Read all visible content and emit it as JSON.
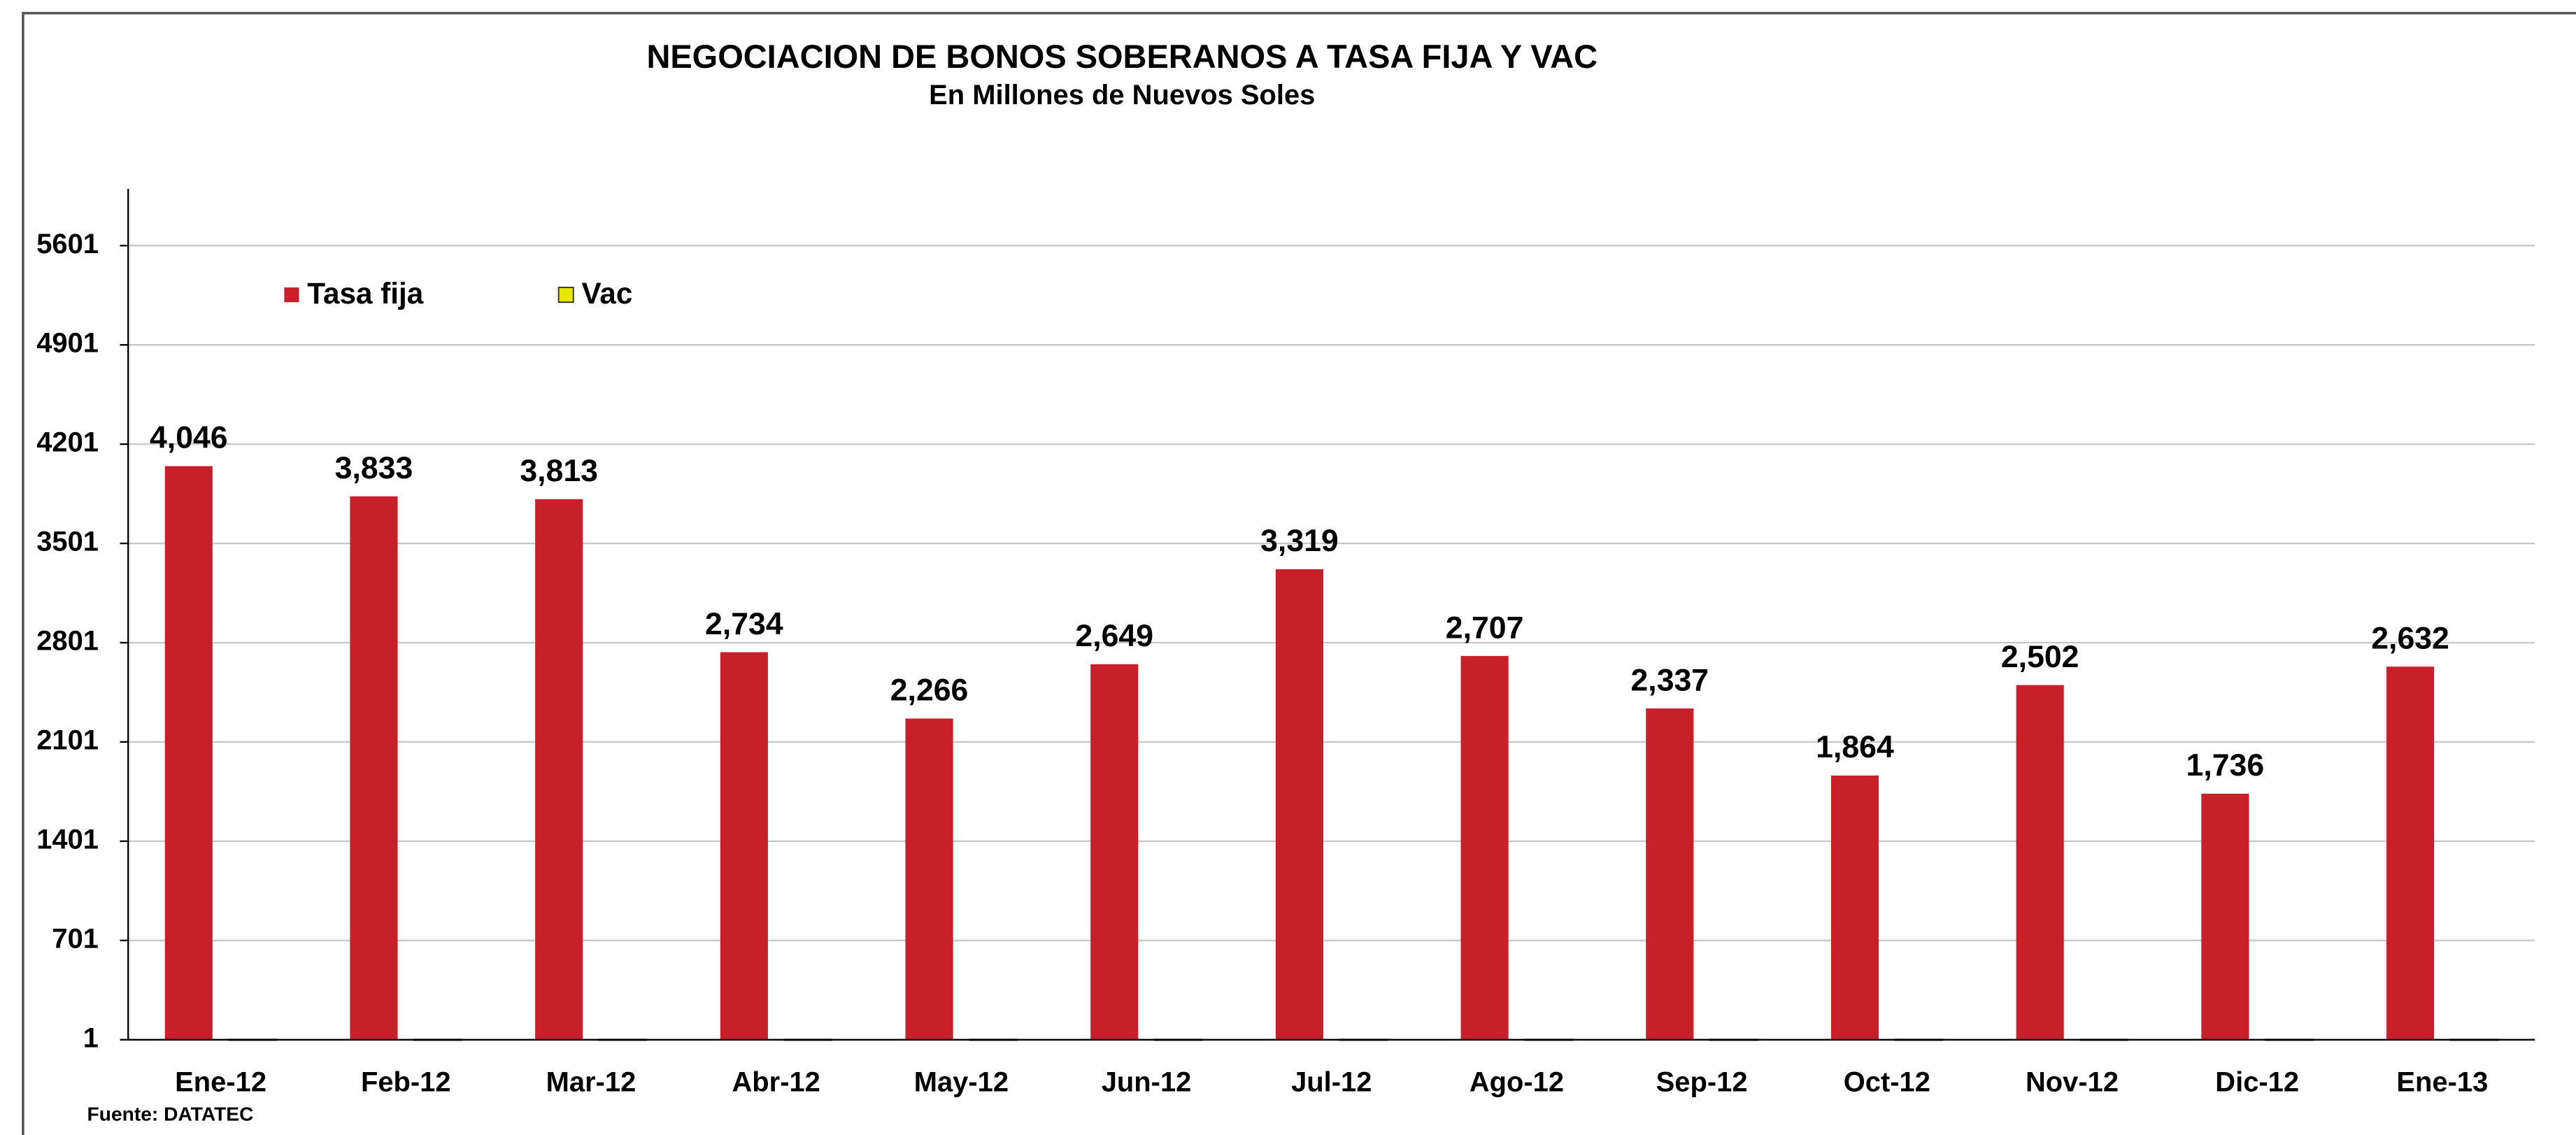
{
  "chart_data": {
    "type": "bar",
    "title": "NEGOCIACION DE BONOS SOBERANOS A TASA FIJA Y VAC",
    "subtitle": "En Millones de Nuevos Soles",
    "source": "Fuente: DATATEC",
    "categories": [
      "Ene-12",
      "Feb-12",
      "Mar-12",
      "Abr-12",
      "May-12",
      "Jun-12",
      "Jul-12",
      "Ago-12",
      "Sep-12",
      "Oct-12",
      "Nov-12",
      "Dic-12",
      "Ene-13"
    ],
    "series": [
      {
        "name": "Tasa fija",
        "color": "#c8202a",
        "values": [
          4046,
          3833,
          3813,
          2734,
          2266,
          2649,
          3319,
          2707,
          2337,
          1864,
          2502,
          1736,
          2632
        ],
        "value_labels": [
          "4,046",
          "3,833",
          "3,813",
          "2,734",
          "2,266",
          "2,649",
          "3,319",
          "2,707",
          "2,337",
          "1,864",
          "2,502",
          "1,736",
          "2,632"
        ]
      },
      {
        "name": "Vac",
        "color": "#e6e600",
        "values": [
          5,
          5,
          5,
          5,
          5,
          5,
          5,
          5,
          5,
          5,
          5,
          5,
          5
        ]
      }
    ],
    "ylim": [
      1,
      6001
    ],
    "yticks": [
      1,
      701,
      1401,
      2101,
      2801,
      3501,
      4201,
      4901,
      5601
    ],
    "grid": true,
    "legend": "top-left"
  }
}
